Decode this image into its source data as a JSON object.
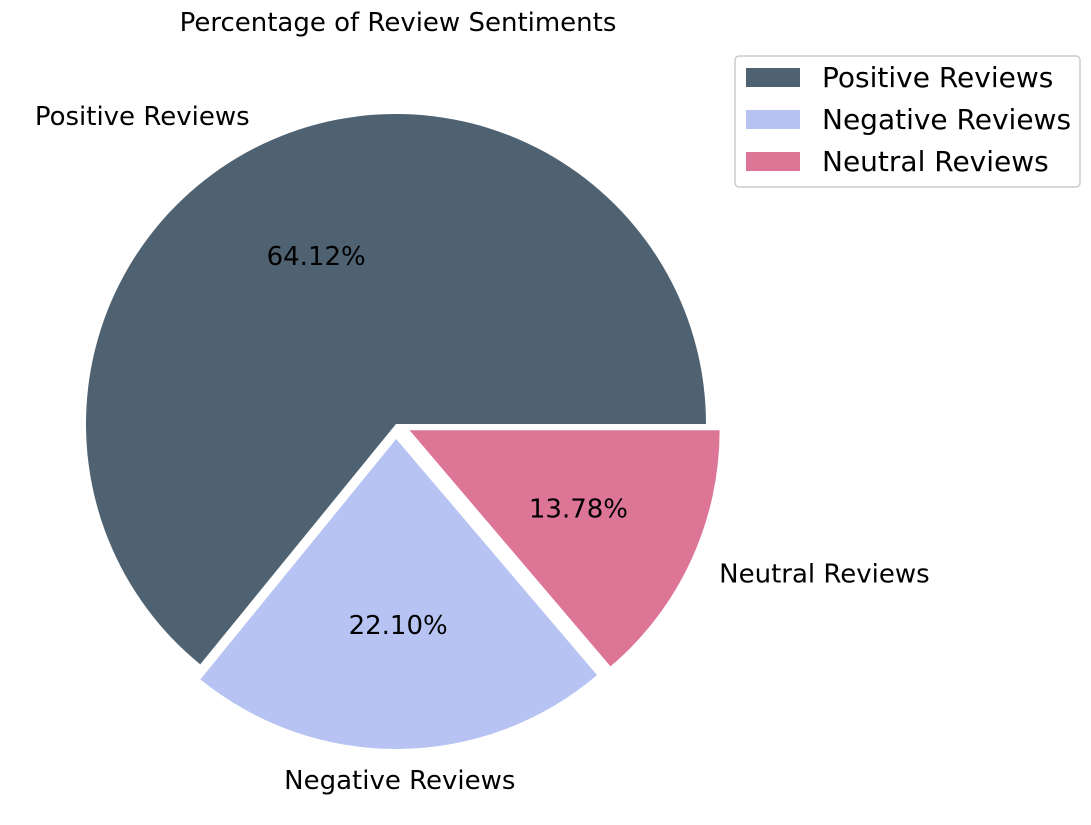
{
  "chart_data": {
    "type": "pie",
    "title": "Percentage of Review Sentiments",
    "slices": [
      {
        "name": "Positive Reviews",
        "value": 64.12,
        "value_label": "64.12%",
        "color": "#4f6272",
        "exploded": false
      },
      {
        "name": "Negative Reviews",
        "value": 22.1,
        "value_label": "22.10%",
        "color": "#b7c3f3",
        "exploded": true
      },
      {
        "name": "Neutral Reviews",
        "value": 13.78,
        "value_label": "13.78%",
        "color": "#dd7596",
        "exploded": true
      }
    ],
    "start_angle": 0,
    "direction": "counterclockwise",
    "legend": {
      "position": "top-right",
      "entries": [
        "Positive Reviews",
        "Negative Reviews",
        "Neutral Reviews"
      ]
    }
  }
}
